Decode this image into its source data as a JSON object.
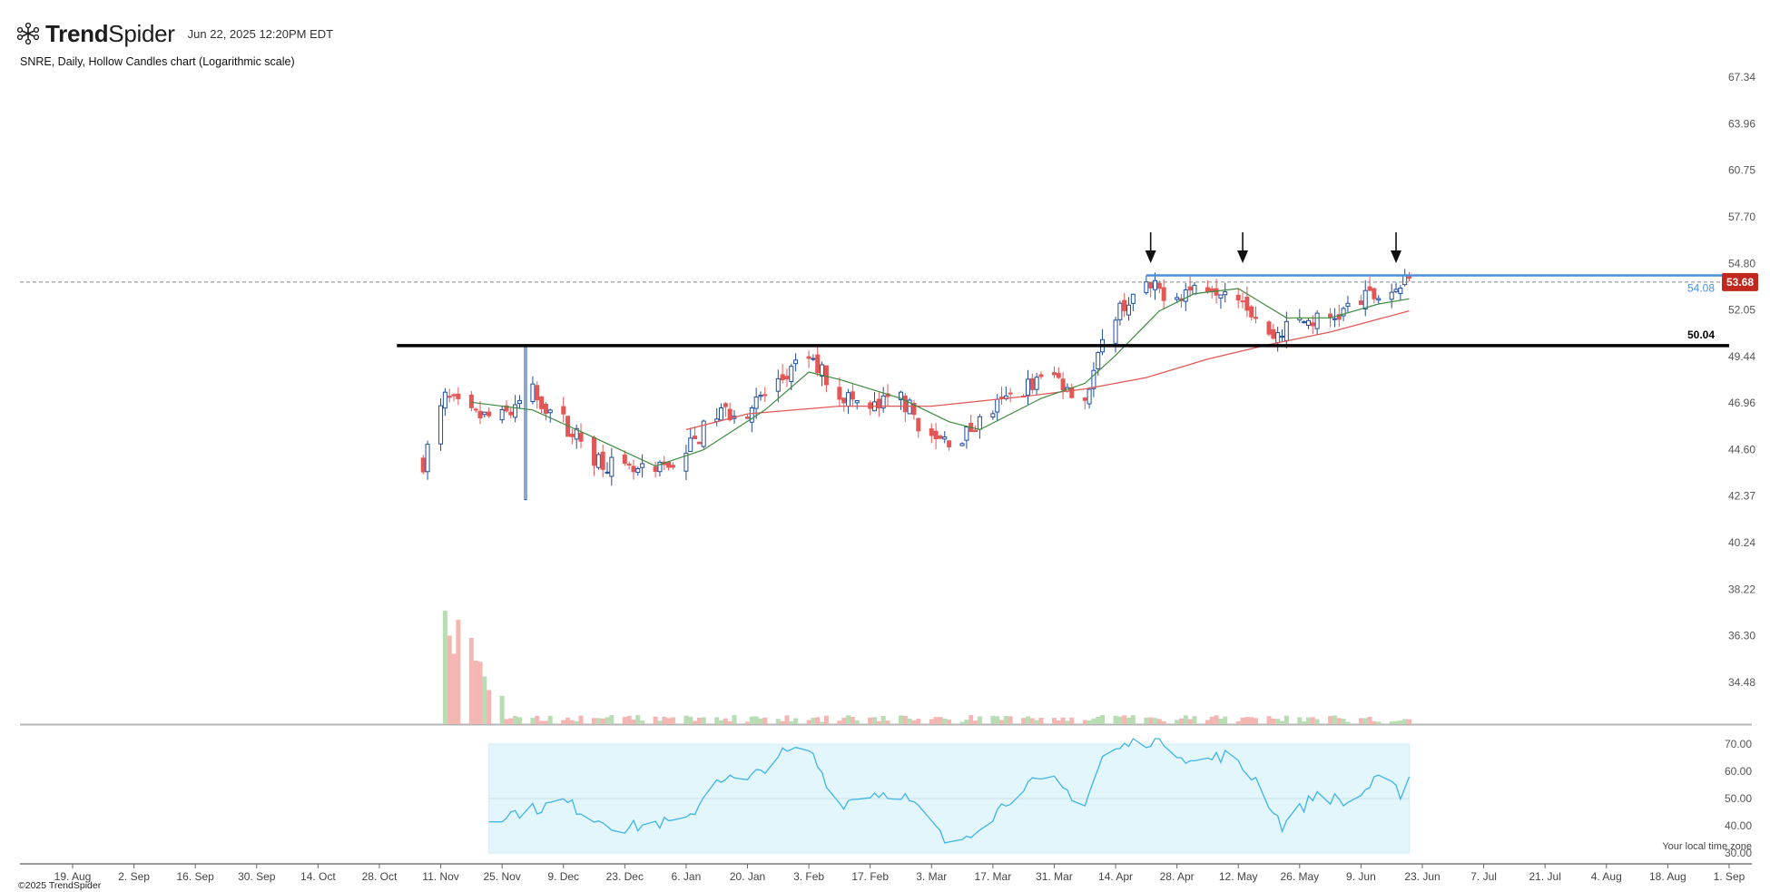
{
  "header": {
    "logo_text_bold": "Trend",
    "logo_text_light": "Spider",
    "timestamp": "Jun 22, 2025 12:20PM EDT",
    "subtitle": "SNRE, Daily, Hollow Candles chart (Logarithmic scale)",
    "copyright": "©2025 TrendSpider",
    "timezone_note": "Your local time zone"
  },
  "colors": {
    "up": "#1f4e9e",
    "down": "#e45757",
    "sma_short": "#3d8a3d",
    "sma_long": "#e45757",
    "resistance": "#4a90d9",
    "support": "#000000",
    "rsi": "#3eb5e8",
    "rsi_band": "#e3f6fb",
    "price_badge": "#c0281e"
  },
  "chart_data": {
    "type": "candlestick",
    "ticker": "SNRE",
    "interval": "Daily",
    "scale": "log",
    "y_ticks": [
      "67.34",
      "63.96",
      "60.75",
      "57.70",
      "54.80",
      "52.05",
      "49.44",
      "46.96",
      "44.60",
      "42.37",
      "40.24",
      "38.22",
      "36.30",
      "34.48"
    ],
    "x_ticks": [
      "19. Aug",
      "2. Sep",
      "16. Sep",
      "30. Sep",
      "14. Oct",
      "28. Oct",
      "11. Nov",
      "25. Nov",
      "9. Dec",
      "23. Dec",
      "6. Jan",
      "20. Jan",
      "3. Feb",
      "17. Feb",
      "3. Mar",
      "17. Mar",
      "31. Mar",
      "14. Apr",
      "28. Apr",
      "12. May",
      "26. May",
      "9. Jun",
      "23. Jun",
      "7. Jul",
      "21. Jul",
      "4. Aug",
      "18. Aug",
      "1. Sep"
    ],
    "price_path": [
      [
        "2024-11-07",
        44.0
      ],
      [
        "2024-11-12",
        47.2
      ],
      [
        "2024-11-18",
        46.3
      ],
      [
        "2024-11-25",
        46.2
      ],
      [
        "2024-12-02",
        47.5
      ],
      [
        "2024-12-09",
        46.0
      ],
      [
        "2024-12-16",
        44.3
      ],
      [
        "2024-12-23",
        43.5
      ],
      [
        "2024-12-30",
        43.4
      ],
      [
        "2025-01-06",
        44.5
      ],
      [
        "2025-01-13",
        46.4
      ],
      [
        "2025-01-20",
        46.6
      ],
      [
        "2025-01-27",
        48.0
      ],
      [
        "2025-02-03",
        49.4
      ],
      [
        "2025-02-10",
        47.5
      ],
      [
        "2025-02-17",
        46.6
      ],
      [
        "2025-02-24",
        47.3
      ],
      [
        "2025-03-03",
        45.0
      ],
      [
        "2025-03-10",
        45.2
      ],
      [
        "2025-03-17",
        46.6
      ],
      [
        "2025-03-24",
        47.8
      ],
      [
        "2025-03-31",
        48.4
      ],
      [
        "2025-04-07",
        47.2
      ],
      [
        "2025-04-14",
        52.0
      ],
      [
        "2025-04-21",
        53.3
      ],
      [
        "2025-04-28",
        53.0
      ],
      [
        "2025-05-05",
        53.6
      ],
      [
        "2025-05-12",
        53.2
      ],
      [
        "2025-05-19",
        50.5
      ],
      [
        "2025-05-26",
        51.4
      ],
      [
        "2025-06-02",
        51.5
      ],
      [
        "2025-06-09",
        52.6
      ],
      [
        "2025-06-16",
        53.2
      ],
      [
        "2025-06-20",
        53.68
      ]
    ],
    "sma_short_path": [
      [
        "2024-11-18",
        47.0
      ],
      [
        "2024-12-02",
        46.6
      ],
      [
        "2024-12-16",
        45.2
      ],
      [
        "2024-12-30",
        43.8
      ],
      [
        "2025-01-10",
        44.6
      ],
      [
        "2025-01-24",
        46.6
      ],
      [
        "2025-02-03",
        48.6
      ],
      [
        "2025-02-10",
        48.2
      ],
      [
        "2025-02-24",
        47.2
      ],
      [
        "2025-03-07",
        46.0
      ],
      [
        "2025-03-14",
        45.6
      ],
      [
        "2025-03-28",
        47.2
      ],
      [
        "2025-04-07",
        48.0
      ],
      [
        "2025-04-14",
        49.5
      ],
      [
        "2025-04-24",
        52.0
      ],
      [
        "2025-05-02",
        53.0
      ],
      [
        "2025-05-12",
        53.3
      ],
      [
        "2025-05-23",
        51.6
      ],
      [
        "2025-06-02",
        51.6
      ],
      [
        "2025-06-13",
        52.4
      ],
      [
        "2025-06-20",
        52.7
      ]
    ],
    "sma_long_path": [
      [
        "2025-01-06",
        45.6
      ],
      [
        "2025-01-20",
        46.4
      ],
      [
        "2025-02-10",
        46.8
      ],
      [
        "2025-03-03",
        46.8
      ],
      [
        "2025-03-24",
        47.3
      ],
      [
        "2025-04-07",
        47.7
      ],
      [
        "2025-04-21",
        48.3
      ],
      [
        "2025-05-05",
        49.3
      ],
      [
        "2025-05-19",
        50.1
      ],
      [
        "2025-06-02",
        50.8
      ],
      [
        "2025-06-20",
        52.0
      ]
    ],
    "resistance": {
      "value": 54.08,
      "from": "2025-04-21",
      "to": "2025-06-30",
      "label": "54.08"
    },
    "support": {
      "value": 50.04,
      "from": "2024-11-01",
      "to": "2025-09-01",
      "label": "50.04"
    },
    "last_price": {
      "value": 53.68,
      "label": "53.68"
    },
    "arrow_dates": [
      "2025-04-22",
      "2025-05-13",
      "2025-06-17"
    ],
    "volume": {
      "spike_dates": [
        "2024-11-12",
        "2024-11-13",
        "2024-11-14",
        "2024-11-15",
        "2024-11-18",
        "2024-11-19",
        "2024-11-20",
        "2024-11-21",
        "2024-11-22",
        "2024-11-25"
      ],
      "spike_values": [
        1.0,
        0.78,
        0.62,
        0.92,
        0.76,
        0.56,
        0.55,
        0.42,
        0.3,
        0.25
      ]
    },
    "rsi": {
      "y_ticks": [
        "70.00",
        "60.00",
        "50.00",
        "40.00",
        "30.00"
      ],
      "band": [
        30,
        70
      ],
      "midline": 50,
      "path": [
        [
          "2024-11-22",
          43
        ],
        [
          "2024-12-02",
          46
        ],
        [
          "2024-12-09",
          49
        ],
        [
          "2024-12-16",
          43
        ],
        [
          "2024-12-23",
          39
        ],
        [
          "2024-12-30",
          41
        ],
        [
          "2025-01-06",
          41
        ],
        [
          "2025-01-13",
          58
        ],
        [
          "2025-01-20",
          56
        ],
        [
          "2025-01-27",
          66
        ],
        [
          "2025-02-03",
          68
        ],
        [
          "2025-02-10",
          48
        ],
        [
          "2025-02-17",
          52
        ],
        [
          "2025-02-24",
          52
        ],
        [
          "2025-03-03",
          41
        ],
        [
          "2025-03-07",
          32
        ],
        [
          "2025-03-17",
          44
        ],
        [
          "2025-03-24",
          55
        ],
        [
          "2025-03-31",
          56
        ],
        [
          "2025-04-07",
          48
        ],
        [
          "2025-04-11",
          65
        ],
        [
          "2025-04-17",
          70
        ],
        [
          "2025-04-24",
          72
        ],
        [
          "2025-05-02",
          63
        ],
        [
          "2025-05-09",
          66
        ],
        [
          "2025-05-16",
          57
        ],
        [
          "2025-05-22",
          40
        ],
        [
          "2025-05-30",
          52
        ],
        [
          "2025-06-06",
          48
        ],
        [
          "2025-06-13",
          57
        ],
        [
          "2025-06-18",
          52
        ],
        [
          "2025-06-20",
          58
        ]
      ]
    }
  }
}
